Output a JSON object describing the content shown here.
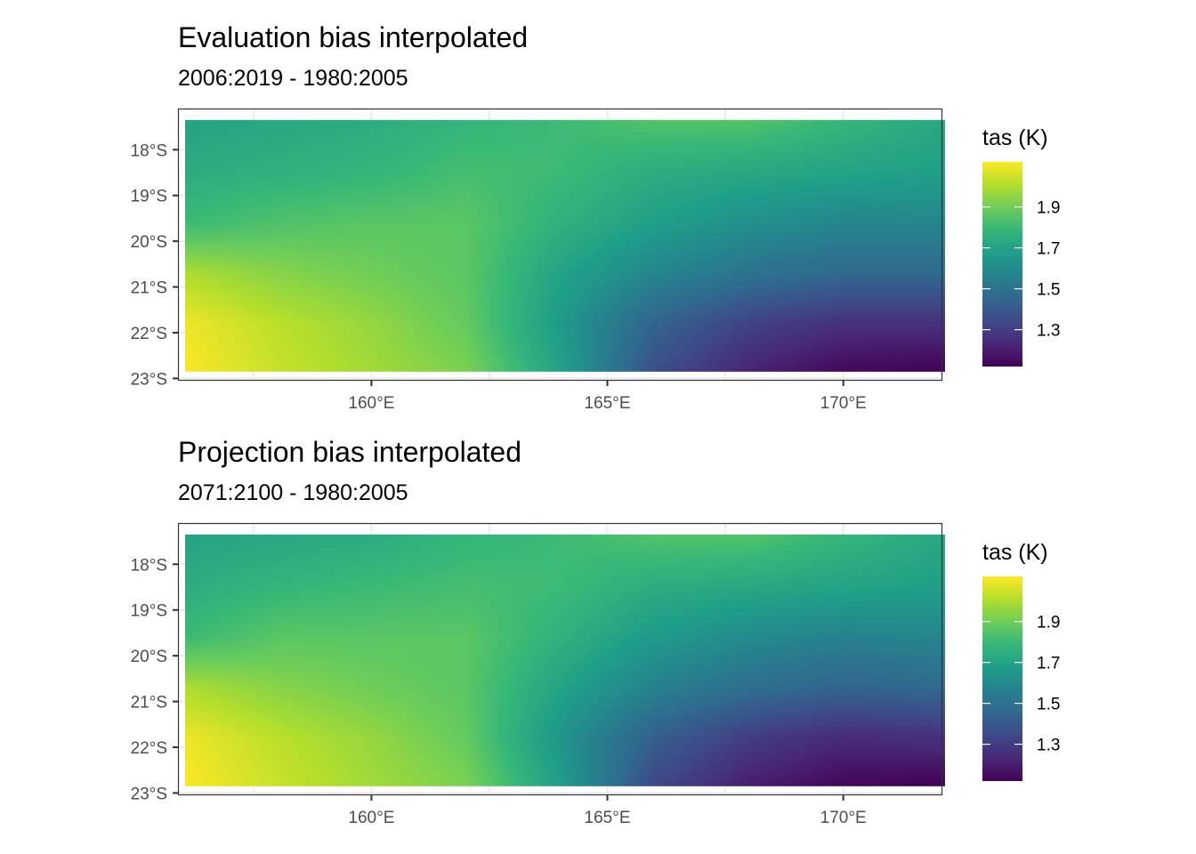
{
  "chart_data": [
    {
      "type": "heatmap",
      "title": "Evaluation bias interpolated",
      "subtitle": "2006:2019 - 1980:2005",
      "xlabel": "",
      "ylabel": "",
      "x_ticks": [
        {
          "value": 160,
          "label": "160°E"
        },
        {
          "value": 165,
          "label": "165°E"
        },
        {
          "value": 170,
          "label": "170°E"
        }
      ],
      "y_ticks": [
        {
          "value": -18,
          "label": "18°S"
        },
        {
          "value": -19,
          "label": "19°S"
        },
        {
          "value": -20,
          "label": "20°S"
        },
        {
          "value": -21,
          "label": "21°S"
        },
        {
          "value": -22,
          "label": "22°S"
        },
        {
          "value": -23,
          "label": "23°S"
        }
      ],
      "xlim": [
        155.9,
        172.1
      ],
      "ylim": [
        -23.05,
        -17.1
      ],
      "grid": true,
      "data_extent": {
        "x": [
          156.05,
          172.15
        ],
        "y": [
          -22.85,
          -17.35
        ]
      },
      "color_scale": "viridis",
      "value_range": [
        1.12,
        2.12
      ],
      "legend": {
        "title": "tas (K)",
        "position": "right",
        "ticks": [
          1.3,
          1.5,
          1.7,
          1.9
        ],
        "tick_labels": [
          "1.3",
          "1.5",
          "1.7",
          "1.9"
        ]
      },
      "grid_lon": [
        156,
        158,
        160,
        162,
        164,
        166,
        168,
        170,
        172
      ],
      "grid_lat": [
        -17.4,
        -18.5,
        -19.6,
        -20.7,
        -21.8,
        -22.85
      ],
      "values": [
        [
          1.7,
          1.72,
          1.74,
          1.78,
          1.8,
          1.84,
          1.84,
          1.78,
          1.72
        ],
        [
          1.74,
          1.76,
          1.78,
          1.82,
          1.8,
          1.74,
          1.72,
          1.7,
          1.68
        ],
        [
          1.8,
          1.84,
          1.86,
          1.86,
          1.76,
          1.68,
          1.62,
          1.58,
          1.58
        ],
        [
          2.0,
          1.94,
          1.9,
          1.86,
          1.7,
          1.58,
          1.5,
          1.46,
          1.46
        ],
        [
          2.1,
          2.02,
          1.96,
          1.88,
          1.66,
          1.44,
          1.32,
          1.26,
          1.26
        ],
        [
          2.12,
          2.04,
          1.98,
          1.92,
          1.7,
          1.36,
          1.22,
          1.14,
          1.12
        ]
      ]
    },
    {
      "type": "heatmap",
      "title": "Projection bias interpolated",
      "subtitle": "2071:2100 - 1980:2005",
      "xlabel": "",
      "ylabel": "",
      "x_ticks": [
        {
          "value": 160,
          "label": "160°E"
        },
        {
          "value": 165,
          "label": "165°E"
        },
        {
          "value": 170,
          "label": "170°E"
        }
      ],
      "y_ticks": [
        {
          "value": -18,
          "label": "18°S"
        },
        {
          "value": -19,
          "label": "19°S"
        },
        {
          "value": -20,
          "label": "20°S"
        },
        {
          "value": -21,
          "label": "21°S"
        },
        {
          "value": -22,
          "label": "22°S"
        },
        {
          "value": -23,
          "label": "23°S"
        }
      ],
      "xlim": [
        155.9,
        172.1
      ],
      "ylim": [
        -23.05,
        -17.1
      ],
      "grid": true,
      "data_extent": {
        "x": [
          156.05,
          172.15
        ],
        "y": [
          -22.85,
          -17.35
        ]
      },
      "color_scale": "viridis",
      "value_range": [
        1.12,
        2.12
      ],
      "legend": {
        "title": "tas (K)",
        "position": "right",
        "ticks": [
          1.3,
          1.5,
          1.7,
          1.9
        ],
        "tick_labels": [
          "1.3",
          "1.5",
          "1.7",
          "1.9"
        ]
      },
      "grid_lon": [
        156,
        158,
        160,
        162,
        164,
        166,
        168,
        170,
        172
      ],
      "grid_lat": [
        -17.4,
        -18.5,
        -19.6,
        -20.7,
        -21.8,
        -22.85
      ],
      "values": [
        [
          1.7,
          1.72,
          1.74,
          1.78,
          1.8,
          1.84,
          1.84,
          1.78,
          1.72
        ],
        [
          1.74,
          1.78,
          1.8,
          1.82,
          1.8,
          1.74,
          1.72,
          1.7,
          1.68
        ],
        [
          1.8,
          1.86,
          1.86,
          1.86,
          1.76,
          1.66,
          1.6,
          1.56,
          1.58
        ],
        [
          2.0,
          1.94,
          1.9,
          1.86,
          1.7,
          1.56,
          1.48,
          1.44,
          1.46
        ],
        [
          2.1,
          2.02,
          1.96,
          1.88,
          1.64,
          1.42,
          1.3,
          1.24,
          1.26
        ],
        [
          2.12,
          2.04,
          1.98,
          1.92,
          1.68,
          1.34,
          1.2,
          1.14,
          1.12
        ]
      ]
    }
  ]
}
